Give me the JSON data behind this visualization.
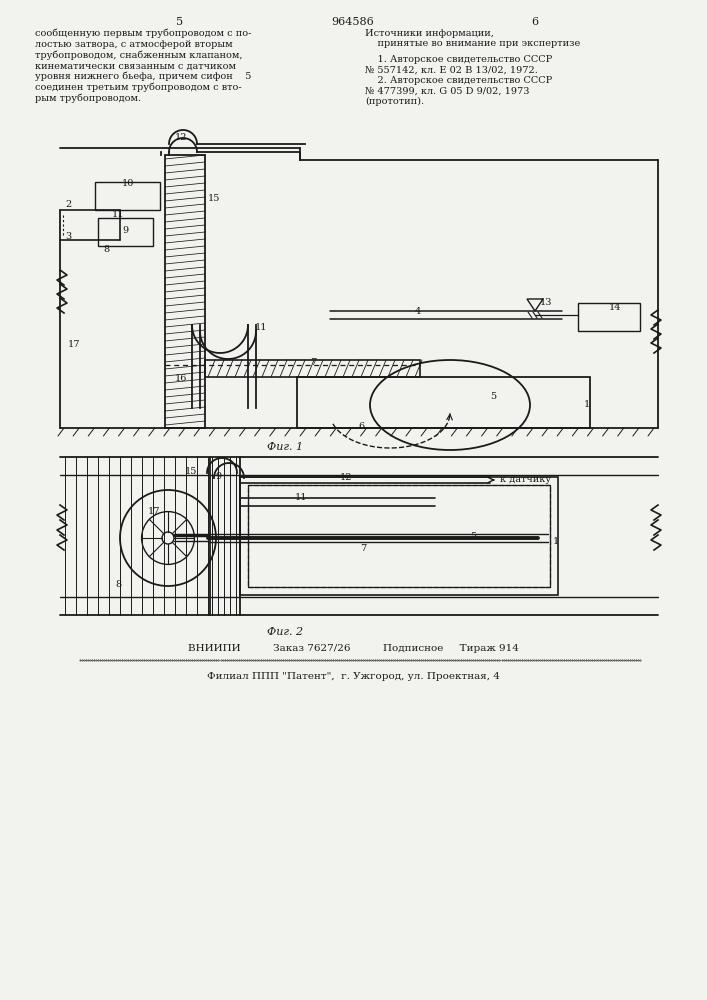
{
  "page_color": "#f2f2ee",
  "line_color": "#1a1a1a",
  "text_color": "#1a1a1a",
  "page_left": "5",
  "patent_number": "964586",
  "page_right": "6",
  "text_left": "сообщенную первым трубопроводом с по-\nлостью затвора, с атмосферой вторым\nтрубопроводом, снабженным клапаном,\nкинематически связанным с датчиком\nуровня нижнего бьефа, причем сифон    5\nсоединен третьим трубопроводом с вто-\nрым трубопроводом.",
  "text_right_title": "Источники информации,\n    принятые во внимание при экспертизе",
  "text_right_body": "    1. Авторское свидетельство СССР\n№ 557142, кл. Е 02 В 13/02, 1972.\n    2. Авторское свидетельство СССР\n№ 477399, кл. G 05 D 9/02, 1973\n(прототип).",
  "fig1_caption": "Фиг. 1",
  "fig2_caption": "Фиг. 2",
  "bottom_line1": "ВНИИПИ          Заказ 7627/26          Подписное     Тираж 914",
  "bottom_line2": "Филиал ППП \"Патент\",  г. Ужгород, ул. Проектная, 4"
}
